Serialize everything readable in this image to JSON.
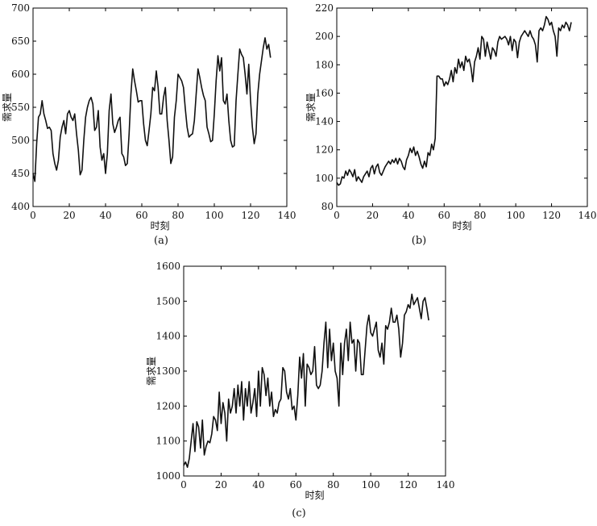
{
  "chart_data": [
    {
      "id": "a",
      "type": "line",
      "panel_label": "(a)",
      "title": "",
      "xlabel": "时刻",
      "ylabel": "需求量",
      "xlim": [
        0,
        140
      ],
      "ylim": [
        400,
        700
      ],
      "xticks": [
        0,
        20,
        40,
        60,
        80,
        100,
        120,
        140
      ],
      "yticks": [
        400,
        450,
        500,
        550,
        600,
        650,
        700
      ],
      "grid": false,
      "series": [
        {
          "color": "#111111",
          "x": [
            0,
            1,
            2,
            3,
            4,
            5,
            6,
            7,
            8,
            9,
            10,
            11,
            12,
            13,
            14,
            15,
            16,
            17,
            18,
            19,
            20,
            21,
            22,
            23,
            24,
            25,
            26,
            27,
            28,
            29,
            30,
            31,
            32,
            33,
            34,
            35,
            36,
            37,
            38,
            39,
            40,
            41,
            42,
            43,
            44,
            45,
            46,
            47,
            48,
            49,
            50,
            51,
            52,
            53,
            54,
            55,
            56,
            57,
            58,
            59,
            60,
            61,
            62,
            63,
            64,
            65,
            66,
            67,
            68,
            69,
            70,
            71,
            72,
            73,
            74,
            75,
            76,
            77,
            78,
            79,
            80,
            81,
            82,
            83,
            84,
            85,
            86,
            87,
            88,
            89,
            90,
            91,
            92,
            93,
            94,
            95,
            96,
            97,
            98,
            99,
            100,
            101,
            102,
            103,
            104,
            105,
            106,
            107,
            108,
            109,
            110,
            111,
            112,
            113,
            114,
            115,
            116,
            117,
            118,
            119,
            120,
            121,
            122,
            123,
            124,
            125,
            126,
            127,
            128,
            129,
            130,
            131
          ],
          "y": [
            450,
            438,
            495,
            535,
            540,
            560,
            540,
            530,
            518,
            520,
            515,
            480,
            465,
            455,
            470,
            505,
            520,
            530,
            510,
            540,
            545,
            535,
            530,
            540,
            510,
            485,
            448,
            455,
            500,
            535,
            550,
            560,
            565,
            555,
            515,
            520,
            545,
            490,
            470,
            480,
            450,
            480,
            545,
            570,
            525,
            512,
            520,
            530,
            535,
            480,
            475,
            462,
            465,
            510,
            570,
            608,
            590,
            575,
            558,
            560,
            560,
            525,
            500,
            492,
            515,
            540,
            580,
            575,
            605,
            580,
            540,
            540,
            565,
            580,
            530,
            500,
            465,
            475,
            535,
            560,
            600,
            595,
            590,
            580,
            548,
            520,
            505,
            508,
            510,
            530,
            570,
            608,
            595,
            580,
            568,
            560,
            520,
            510,
            498,
            500,
            540,
            590,
            628,
            605,
            625,
            560,
            555,
            570,
            530,
            500,
            490,
            492,
            560,
            600,
            638,
            630,
            625,
            600,
            570,
            615,
            560,
            520,
            495,
            510,
            570,
            600,
            620,
            640,
            655,
            638,
            645,
            625
          ]
        }
      ]
    },
    {
      "id": "b",
      "type": "line",
      "panel_label": "(b)",
      "title": "",
      "xlabel": "时刻",
      "ylabel": "需求量",
      "xlim": [
        0,
        140
      ],
      "ylim": [
        80,
        220
      ],
      "xticks": [
        0,
        20,
        40,
        60,
        80,
        100,
        120,
        140
      ],
      "yticks": [
        80,
        100,
        120,
        140,
        160,
        180,
        200,
        220
      ],
      "grid": false,
      "series": [
        {
          "color": "#111111",
          "x": [
            0,
            1,
            2,
            3,
            4,
            5,
            6,
            7,
            8,
            9,
            10,
            11,
            12,
            13,
            14,
            15,
            16,
            17,
            18,
            19,
            20,
            21,
            22,
            23,
            24,
            25,
            26,
            27,
            28,
            29,
            30,
            31,
            32,
            33,
            34,
            35,
            36,
            37,
            38,
            39,
            40,
            41,
            42,
            43,
            44,
            45,
            46,
            47,
            48,
            49,
            50,
            51,
            52,
            53,
            54,
            55,
            56,
            57,
            58,
            59,
            60,
            61,
            62,
            63,
            64,
            65,
            66,
            67,
            68,
            69,
            70,
            71,
            72,
            73,
            74,
            75,
            76,
            77,
            78,
            79,
            80,
            81,
            82,
            83,
            84,
            85,
            86,
            87,
            88,
            89,
            90,
            91,
            92,
            93,
            94,
            95,
            96,
            97,
            98,
            99,
            100,
            101,
            102,
            103,
            104,
            105,
            106,
            107,
            108,
            109,
            110,
            111,
            112,
            113,
            114,
            115,
            116,
            117,
            118,
            119,
            120,
            121,
            122,
            123,
            124,
            125,
            126,
            127,
            128,
            129,
            130,
            131
          ],
          "y": [
            97,
            95,
            96,
            101,
            100,
            105,
            102,
            106,
            104,
            101,
            106,
            98,
            101,
            99,
            97,
            101,
            103,
            105,
            101,
            107,
            109,
            103,
            108,
            110,
            104,
            102,
            105,
            108,
            110,
            112,
            110,
            113,
            111,
            114,
            110,
            114,
            112,
            108,
            106,
            113,
            116,
            121,
            118,
            122,
            116,
            119,
            115,
            110,
            107,
            112,
            108,
            118,
            116,
            124,
            120,
            128,
            172,
            172,
            170,
            170,
            165,
            168,
            166,
            170,
            176,
            168,
            178,
            174,
            184,
            178,
            182,
            176,
            186,
            182,
            184,
            178,
            168,
            182,
            186,
            192,
            184,
            200,
            198,
            186,
            196,
            190,
            184,
            192,
            190,
            186,
            196,
            200,
            198,
            199,
            200,
            198,
            194,
            200,
            190,
            198,
            196,
            185,
            196,
            200,
            202,
            204,
            202,
            200,
            204,
            200,
            198,
            194,
            182,
            204,
            206,
            204,
            208,
            214,
            212,
            208,
            210,
            204,
            200,
            186,
            206,
            204,
            208,
            206,
            210,
            208,
            204,
            210
          ]
        }
      ]
    },
    {
      "id": "c",
      "type": "line",
      "panel_label": "(c)",
      "title": "",
      "xlabel": "时刻",
      "ylabel": "需求量",
      "xlim": [
        0,
        140
      ],
      "ylim": [
        1000,
        1600
      ],
      "xticks": [
        0,
        20,
        40,
        60,
        80,
        100,
        120,
        140
      ],
      "yticks": [
        1000,
        1100,
        1200,
        1300,
        1400,
        1500,
        1600
      ],
      "grid": false,
      "series": [
        {
          "color": "#111111",
          "x": [
            0,
            1,
            2,
            3,
            4,
            5,
            6,
            7,
            8,
            9,
            10,
            11,
            12,
            13,
            14,
            15,
            16,
            17,
            18,
            19,
            20,
            21,
            22,
            23,
            24,
            25,
            26,
            27,
            28,
            29,
            30,
            31,
            32,
            33,
            34,
            35,
            36,
            37,
            38,
            39,
            40,
            41,
            42,
            43,
            44,
            45,
            46,
            47,
            48,
            49,
            50,
            51,
            52,
            53,
            54,
            55,
            56,
            57,
            58,
            59,
            60,
            61,
            62,
            63,
            64,
            65,
            66,
            67,
            68,
            69,
            70,
            71,
            72,
            73,
            74,
            75,
            76,
            77,
            78,
            79,
            80,
            81,
            82,
            83,
            84,
            85,
            86,
            87,
            88,
            89,
            90,
            91,
            92,
            93,
            94,
            95,
            96,
            97,
            98,
            99,
            100,
            101,
            102,
            103,
            104,
            105,
            106,
            107,
            108,
            109,
            110,
            111,
            112,
            113,
            114,
            115,
            116,
            117,
            118,
            119,
            120,
            121,
            122,
            123,
            124,
            125,
            126,
            127,
            128,
            129,
            130,
            131
          ],
          "y": [
            1030,
            1040,
            1025,
            1050,
            1100,
            1150,
            1070,
            1155,
            1140,
            1080,
            1160,
            1060,
            1085,
            1100,
            1095,
            1120,
            1170,
            1160,
            1130,
            1240,
            1150,
            1210,
            1180,
            1100,
            1220,
            1180,
            1200,
            1250,
            1180,
            1260,
            1200,
            1270,
            1160,
            1250,
            1200,
            1270,
            1180,
            1210,
            1250,
            1170,
            1300,
            1200,
            1310,
            1290,
            1230,
            1280,
            1200,
            1240,
            1170,
            1190,
            1180,
            1210,
            1220,
            1310,
            1300,
            1240,
            1220,
            1250,
            1190,
            1200,
            1160,
            1230,
            1340,
            1280,
            1350,
            1200,
            1320,
            1310,
            1290,
            1300,
            1370,
            1260,
            1250,
            1260,
            1300,
            1380,
            1440,
            1310,
            1420,
            1330,
            1380,
            1300,
            1280,
            1200,
            1380,
            1290,
            1380,
            1420,
            1330,
            1440,
            1380,
            1390,
            1300,
            1390,
            1380,
            1290,
            1290,
            1360,
            1430,
            1460,
            1410,
            1400,
            1420,
            1440,
            1360,
            1340,
            1380,
            1320,
            1430,
            1420,
            1440,
            1480,
            1440,
            1440,
            1460,
            1420,
            1340,
            1380,
            1460,
            1470,
            1490,
            1480,
            1520,
            1490,
            1500,
            1510,
            1480,
            1450,
            1500,
            1510,
            1480,
            1445
          ]
        }
      ]
    }
  ]
}
